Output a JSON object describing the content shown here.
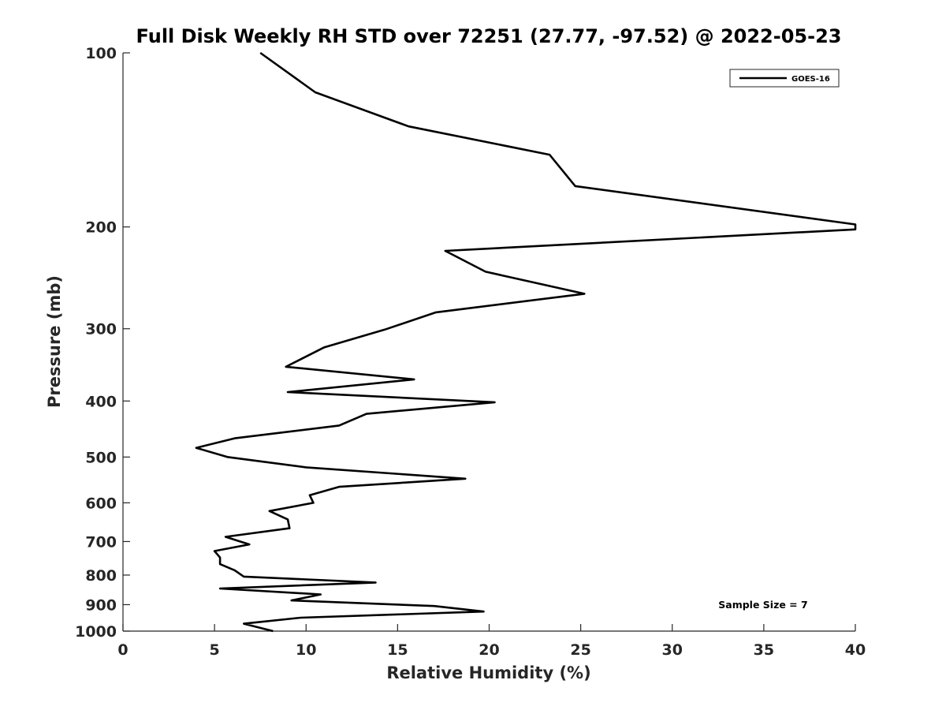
{
  "chart_data": {
    "type": "line",
    "title": "Full Disk Weekly RH STD over 72251 (27.77, -97.52) @ 2022-05-23",
    "xlabel": "Relative Humidity (%)",
    "ylabel": "Pressure (mb)",
    "xlim": [
      0,
      40
    ],
    "ylim": [
      100,
      1000
    ],
    "yscale": "log",
    "y_reversed": true,
    "x_ticks": [
      "0",
      "5",
      "10",
      "15",
      "20",
      "25",
      "30",
      "35",
      "40"
    ],
    "y_ticks": [
      "100",
      "200",
      "300",
      "400",
      "500",
      "600",
      "700",
      "800",
      "900",
      "1000"
    ],
    "grid": false,
    "legend": {
      "position": "top-right",
      "entries": [
        "GOES-16"
      ]
    },
    "annotation": "Sample Size = 7",
    "series": [
      {
        "name": "GOES-16",
        "color": "#000000",
        "points": [
          [
            7.5,
            100
          ],
          [
            10.5,
            117
          ],
          [
            15.6,
            134
          ],
          [
            23.3,
            150
          ],
          [
            24.7,
            170
          ],
          [
            40.0,
            198
          ],
          [
            40.0,
            202
          ],
          [
            17.6,
            220
          ],
          [
            19.8,
            239
          ],
          [
            25.2,
            261
          ],
          [
            17.1,
            281
          ],
          [
            14.3,
            301
          ],
          [
            11.0,
            323
          ],
          [
            8.9,
            349
          ],
          [
            15.9,
            367
          ],
          [
            9.0,
            386
          ],
          [
            20.3,
            402
          ],
          [
            13.3,
            421
          ],
          [
            11.8,
            441
          ],
          [
            6.1,
            464
          ],
          [
            4.0,
            482
          ],
          [
            5.7,
            500
          ],
          [
            10.0,
            521
          ],
          [
            18.7,
            545
          ],
          [
            11.8,
            563
          ],
          [
            10.2,
            582
          ],
          [
            10.4,
            600
          ],
          [
            8.0,
            620
          ],
          [
            9.0,
            641
          ],
          [
            9.1,
            664
          ],
          [
            5.6,
            687
          ],
          [
            6.9,
            708
          ],
          [
            5.0,
            727
          ],
          [
            5.3,
            746
          ],
          [
            5.3,
            766
          ],
          [
            6.1,
            785
          ],
          [
            6.6,
            805
          ],
          [
            13.8,
            824
          ],
          [
            5.3,
            844
          ],
          [
            10.8,
            864
          ],
          [
            9.2,
            885
          ],
          [
            17.0,
            905
          ],
          [
            19.7,
            925
          ],
          [
            9.7,
            948
          ],
          [
            6.6,
            971
          ],
          [
            8.2,
            1000
          ]
        ]
      }
    ]
  }
}
